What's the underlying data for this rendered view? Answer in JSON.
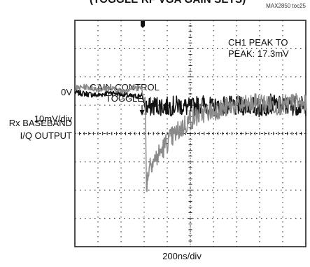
{
  "header": {
    "title_fragment": "(TOGGLE RF VGA GAIN SETS)",
    "figure_tag": "MAX2850 toc25"
  },
  "left_labels": {
    "zero_volt": "0V",
    "vertical_scale": "10mV/div",
    "trace_line1": "Rx BASEBAND",
    "trace_line2": "I/Q OUTPUT"
  },
  "annotations": {
    "gain_toggle_line1": "GAIN-CONTROL",
    "gain_toggle_line2": "TOGGLE",
    "peak_line1": "CH1 PEAK TO",
    "peak_line2": "PEAK: 17.3mV"
  },
  "bottom_label": "200ns/div",
  "colors": {
    "grid": "#222222",
    "trace_black": "#111111",
    "trace_gray": "#8a8a8a",
    "background": "#ffffff"
  },
  "chart_data": {
    "type": "line",
    "title": "",
    "xlabel": "200ns/div",
    "ylabel": "10mV/div",
    "grid": true,
    "x_divisions": 10,
    "y_divisions": 8,
    "xlim": [
      0,
      2000
    ],
    "ylim_mV": [
      -40,
      40
    ],
    "toggle_time_ns": 600,
    "peak_to_peak_mV": 17.3,
    "series": [
      {
        "id": "black",
        "x": [
          0,
          100,
          200,
          300,
          400,
          500,
          580,
          620,
          700,
          800,
          900,
          1000,
          1100,
          1200,
          1300,
          1400,
          1500,
          1600,
          1700,
          1800,
          1900,
          2000
        ],
        "y": [
          14.5,
          14,
          13.5,
          14.5,
          14,
          13,
          13.5,
          9,
          10,
          9.5,
          10,
          9,
          10.5,
          9,
          10,
          9.5,
          10,
          9,
          10.5,
          9.5,
          10,
          9.5
        ]
      },
      {
        "id": "gray",
        "x": [
          0,
          100,
          200,
          300,
          400,
          500,
          580,
          610,
          620,
          650,
          700,
          800,
          900,
          1000,
          1100,
          1200,
          1300,
          1400,
          1500,
          1600,
          1700,
          1800,
          1900,
          2000
        ],
        "y": [
          16,
          16.5,
          15.5,
          16,
          15,
          16,
          16,
          10,
          -18,
          -10,
          -9,
          -3,
          1,
          5,
          7,
          8,
          9,
          10,
          10,
          11,
          10,
          10,
          11,
          10
        ]
      }
    ]
  }
}
